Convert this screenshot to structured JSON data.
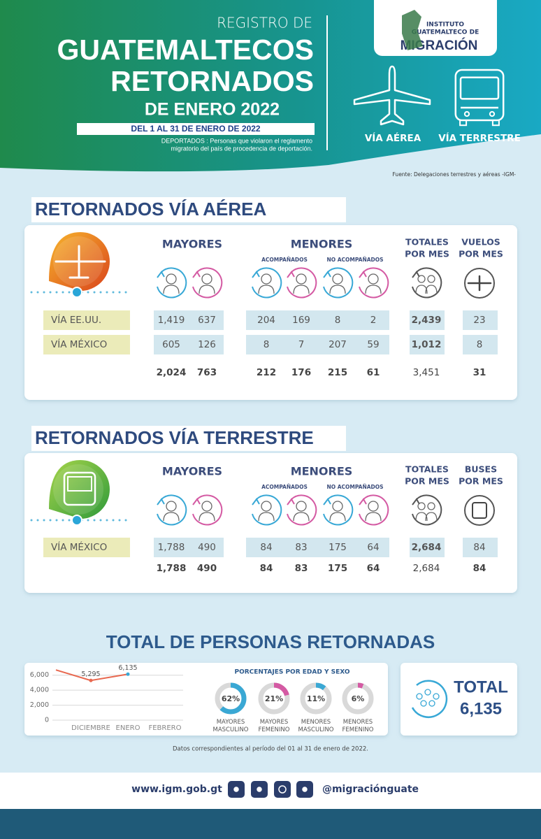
{
  "header": {
    "pretitle": "REGISTRO DE",
    "title_lines": [
      "GUATEMALTECOS",
      "RETORNADOS"
    ],
    "subtitle": "DE ENERO 2022",
    "period": "DEL 1 AL 31 DE ENERO DE 2022",
    "note": [
      "DEPORTADOS : Personas que violaron el reglamento",
      "migratorio del país de procedencia de deportación."
    ]
  },
  "logo": {
    "lines": [
      "INSTITUTO",
      "GUATEMALTECO DE"
    ],
    "name": "MIGRACIÓN"
  },
  "modes": [
    "VÍA AÉREA",
    "VÍA TERRESTRE"
  ],
  "source": "Fuente: Delegaciones terrestres y aéreas -IGM-",
  "sections": [
    {
      "title": "RETORNADOS VÍA AÉREA",
      "headers": {
        "adults": "MAYORES",
        "minors": "MENORES",
        "accompanied": "ACOMPAÑADOS",
        "unaccompanied": "NO ACOMPAÑADOS",
        "totals": [
          "TOTALES",
          "POR MES"
        ],
        "units": [
          "VUELOS",
          "POR MES"
        ]
      },
      "rows": [
        {
          "label": "VÍA EE.UU.",
          "cells": [
            "1,419",
            "637",
            "204",
            "169",
            "8",
            "2",
            "2,439",
            "23"
          ]
        },
        {
          "label": "VÍA MÉXICO",
          "cells": [
            "605",
            "126",
            "8",
            "7",
            "207",
            "59",
            "1,012",
            "8"
          ]
        }
      ],
      "totals": [
        "2,024",
        "763",
        "212",
        "176",
        "215",
        "61",
        "3,451",
        "31"
      ]
    },
    {
      "title": "RETORNADOS VÍA TERRESTRE",
      "headers": {
        "adults": "MAYORES",
        "minors": "MENORES",
        "accompanied": "ACOMPAÑADOS",
        "unaccompanied": "NO ACOMPAÑADOS",
        "totals": [
          "TOTALES",
          "POR MES"
        ],
        "units": [
          "BUSES",
          "POR MES"
        ]
      },
      "rows": [
        {
          "label": "VÍA MÉXICO",
          "cells": [
            "1,788",
            "490",
            "84",
            "83",
            "175",
            "64",
            "2,684",
            "84"
          ]
        }
      ],
      "totals": [
        "1,788",
        "490",
        "84",
        "83",
        "175",
        "64",
        "2,684",
        "84"
      ]
    }
  ],
  "total_title": "TOTAL DE PERSONAS RETORNADAS",
  "chart_data": [
    {
      "type": "line",
      "categories": [
        null,
        "DICIEMBRE",
        "ENERO",
        "FEBRERO"
      ],
      "values": [
        6700,
        5295,
        6135,
        null
      ],
      "value_labels": [
        null,
        "5,295",
        "6,135",
        null
      ],
      "color": "#e8684f",
      "ylim": [
        0,
        7000
      ],
      "yticks": [
        0,
        {
          "value": 2000,
          "label": "2,000"
        },
        {
          "value": 4000,
          "label": "4,000"
        },
        {
          "value": 6000,
          "label": "6,000"
        }
      ],
      "grid": true
    },
    {
      "type": "donut",
      "title": "PORCENTAJES POR EDAD Y SEXO",
      "categories": [
        "MAYORES MASCULINO",
        "MAYORES FEMENINO",
        "MENORES MASCULINO",
        "MENORES FEMENINO"
      ],
      "values": [
        62,
        21,
        11,
        6
      ],
      "value_labels": [
        "62%",
        "21%",
        "11%",
        "6%"
      ],
      "colors": [
        "#3aa8d4",
        "#d45aa3",
        "#3aa8d4",
        "#d45aa3"
      ]
    }
  ],
  "total": {
    "label": "TOTAL",
    "value": "6,135"
  },
  "footnote": "Datos correspondientes al período del 01 al 31 de enero de 2022.",
  "footer": {
    "website": "www.igm.gob.gt",
    "handle": "@migraciónguate"
  }
}
